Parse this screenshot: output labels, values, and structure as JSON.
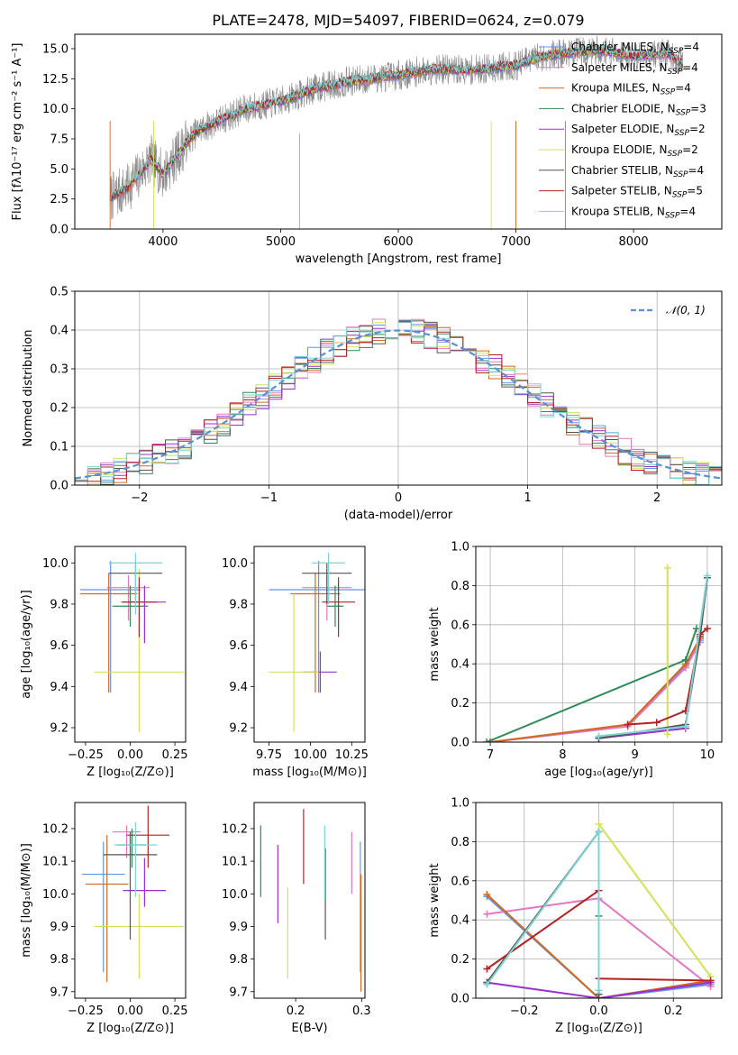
{
  "colors": {
    "chabrier_miles": "#6495ed",
    "salpeter_miles": "#e377c2",
    "kroupa_miles": "#d2691e",
    "chabrier_elodie": "#2e8b57",
    "salpeter_elodie": "#9932cc",
    "kroupa_elodie": "#d4e157",
    "chabrier_stelib": "#555555",
    "salpeter_stelib": "#b22222",
    "kroupa_stelib": "#7fd3d3",
    "data_gray": "#888888",
    "red_model": "#c0392b",
    "gauss": "#5b8fd6"
  },
  "chart_data": [
    {
      "id": "spectrum",
      "type": "line",
      "title": "PLATE=2478, MJD=54097, FIBERID=0624, z=0.079",
      "xlabel": "wavelength [Angstrom, rest frame]",
      "ylabel": "Flux [fλ10⁻¹⁷ erg cm⁻² s⁻¹ A⁻¹]",
      "xlim": [
        3250,
        8750
      ],
      "ylim": [
        0,
        16.2
      ],
      "xticks": [
        4000,
        5000,
        6000,
        7000,
        8000
      ],
      "xtick_labels": [
        "4000",
        "5000",
        "6000",
        "7000",
        "8000"
      ],
      "yticks": [
        0,
        2.5,
        5,
        7.5,
        10,
        12.5,
        15
      ],
      "ytick_labels": [
        "0.0",
        "2.5",
        "5.0",
        "7.5",
        "10.0",
        "12.5",
        "15.0"
      ],
      "continuum_x": [
        3550,
        3700,
        3900,
        4000,
        4200,
        4300,
        4500,
        4700,
        5000,
        5300,
        5600,
        6000,
        6300,
        6600,
        7000,
        7200,
        7400,
        7700,
        8000,
        8300,
        8400
      ],
      "continuum_y": [
        2.6,
        3.4,
        5.8,
        4.5,
        7.2,
        8.2,
        9.1,
        10.0,
        10.6,
        11.7,
        12.3,
        12.8,
        13.3,
        13.2,
        13.6,
        14.3,
        14.6,
        14.9,
        14.4,
        14.6,
        13.8
      ],
      "noise": 1.6,
      "model_span": [
        3550,
        8420
      ],
      "legend": [
        {
          "label": "Chabrier MILES, N",
          "sub": "SSP",
          "tail": "=4",
          "color": "#6495ed"
        },
        {
          "label": "Salpeter MILES, N",
          "sub": "SSP",
          "tail": "=4",
          "color": "#e377c2"
        },
        {
          "label": "Kroupa MILES, N",
          "sub": "SSP",
          "tail": "=4",
          "color": "#d2691e"
        },
        {
          "label": "Chabrier ELODIE, N",
          "sub": "SSP",
          "tail": "=3",
          "color": "#2e8b57"
        },
        {
          "label": "Salpeter ELODIE, N",
          "sub": "SSP",
          "tail": "=2",
          "color": "#9932cc"
        },
        {
          "label": "Kroupa ELODIE, N",
          "sub": "SSP",
          "tail": "=2",
          "color": "#d4e157"
        },
        {
          "label": "Chabrier STELIB, N",
          "sub": "SSP",
          "tail": "=4",
          "color": "#555555"
        },
        {
          "label": "Salpeter STELIB, N",
          "sub": "SSP",
          "tail": "=5",
          "color": "#b22222"
        },
        {
          "label": "Kroupa STELIB, N",
          "sub": "SSP",
          "tail": "=4",
          "color": "#7fd3d3"
        }
      ]
    },
    {
      "id": "residuals",
      "type": "line",
      "xlabel": "(data-model)/error",
      "ylabel": "Normed distribution",
      "xlim": [
        -2.5,
        2.5
      ],
      "ylim": [
        0,
        0.5
      ],
      "xticks": [
        -2,
        -1,
        0,
        1,
        2
      ],
      "xtick_labels": [
        "−2",
        "−1",
        "0",
        "1",
        "2"
      ],
      "yticks": [
        0,
        0.1,
        0.2,
        0.3,
        0.4,
        0.5
      ],
      "ytick_labels": [
        "0.0",
        "0.1",
        "0.2",
        "0.3",
        "0.4",
        "0.5"
      ],
      "bin_width": 0.1,
      "gaussian_label": "𝒩(0, 1)",
      "grid": true
    },
    {
      "id": "age_vs_Z",
      "type": "scatter",
      "xlabel": "Z [log₁₀(Z/Z⊙)]",
      "ylabel": "age  [log₁₀(age/yr)]",
      "xlim": [
        -0.31,
        0.31
      ],
      "ylim": [
        9.13,
        10.08
      ],
      "xticks": [
        -0.25,
        0,
        0.25
      ],
      "xtick_labels": [
        "−0.25",
        "0.00",
        "0.25"
      ],
      "yticks": [
        9.2,
        9.4,
        9.6,
        9.8,
        10.0
      ],
      "ytick_labels": [
        "9.2",
        "9.4",
        "9.6",
        "9.8",
        "10.0"
      ],
      "points": [
        {
          "x": -0.11,
          "y": 9.87,
          "xerr": 0.17,
          "yerr_lo": 0.5,
          "yerr_hi": 0.14,
          "color": "#6495ed"
        },
        {
          "x": -0.01,
          "y": 9.88,
          "xerr": 0.12,
          "yerr_lo": 0.16,
          "yerr_hi": 0.06,
          "color": "#e377c2"
        },
        {
          "x": -0.12,
          "y": 9.85,
          "xerr": 0.16,
          "yerr_lo": 0.48,
          "yerr_hi": 0.1,
          "color": "#d2691e"
        },
        {
          "x": 0.0,
          "y": 9.79,
          "xerr": 0.1,
          "yerr_lo": 0.1,
          "yerr_hi": 0.1,
          "color": "#2e8b57"
        },
        {
          "x": 0.08,
          "y": 9.81,
          "xerr": 0.12,
          "yerr_lo": 0.2,
          "yerr_hi": 0.08,
          "color": "#9932cc"
        },
        {
          "x": 0.05,
          "y": 9.47,
          "xerr": 0.25,
          "yerr_lo": 0.29,
          "yerr_hi": 0.5,
          "color": "#d4e157"
        },
        {
          "x": 0.03,
          "y": 9.95,
          "xerr": 0.15,
          "yerr_lo": 0.15,
          "yerr_hi": 0.05,
          "color": "#555555"
        },
        {
          "x": 0.05,
          "y": 9.81,
          "xerr": 0.1,
          "yerr_lo": 0.17,
          "yerr_hi": 0.12,
          "color": "#b22222"
        },
        {
          "x": 0.03,
          "y": 10.0,
          "xerr": 0.15,
          "yerr_lo": 0.25,
          "yerr_hi": 0.05,
          "color": "#7fd3d3"
        }
      ]
    },
    {
      "id": "age_vs_mass",
      "type": "scatter",
      "xlabel": "mass [log₁₀(M/M⊙)]",
      "ylabel": "",
      "xlim": [
        9.66,
        10.33
      ],
      "ylim": [
        9.13,
        10.08
      ],
      "xticks": [
        9.75,
        10.0,
        10.25
      ],
      "xtick_labels": [
        "9.75",
        "10.00",
        "10.25"
      ],
      "yticks": [
        9.2,
        9.4,
        9.6,
        9.8,
        10.0
      ],
      "ytick_labels": [
        "9.2",
        "9.4",
        "9.6",
        "9.8",
        "10.0"
      ],
      "points": [
        {
          "x": 10.05,
          "y": 9.87,
          "xerr": 0.3,
          "yerr_lo": 0.5,
          "yerr_hi": 0.14,
          "color": "#6495ed"
        },
        {
          "x": 10.1,
          "y": 9.88,
          "xerr": 0.15,
          "yerr_lo": 0.16,
          "yerr_hi": 0.06,
          "color": "#e377c2"
        },
        {
          "x": 10.03,
          "y": 9.85,
          "xerr": 0.15,
          "yerr_lo": 0.48,
          "yerr_hi": 0.1,
          "color": "#d2691e"
        },
        {
          "x": 10.15,
          "y": 9.79,
          "xerr": 0.05,
          "yerr_lo": 0.1,
          "yerr_hi": 0.1,
          "color": "#2e8b57"
        },
        {
          "x": 10.06,
          "y": 9.47,
          "xerr": 0.1,
          "yerr_lo": 0.1,
          "yerr_hi": 0.1,
          "color": "#9932cc"
        },
        {
          "x": 9.9,
          "y": 9.47,
          "xerr": 0.15,
          "yerr_lo": 0.29,
          "yerr_hi": 0.38,
          "color": "#d4e157"
        },
        {
          "x": 10.1,
          "y": 9.95,
          "xerr": 0.15,
          "yerr_lo": 0.15,
          "yerr_hi": 0.05,
          "color": "#555555"
        },
        {
          "x": 10.17,
          "y": 9.81,
          "xerr": 0.1,
          "yerr_lo": 0.17,
          "yerr_hi": 0.12,
          "color": "#b22222"
        },
        {
          "x": 10.11,
          "y": 10.0,
          "xerr": 0.1,
          "yerr_lo": 0.2,
          "yerr_hi": 0.05,
          "color": "#7fd3d3"
        }
      ]
    },
    {
      "id": "weight_vs_age",
      "type": "line",
      "xlabel": "age  [log₁₀(age/yr)]",
      "ylabel": "mass weight",
      "xlim": [
        6.8,
        10.2
      ],
      "ylim": [
        0,
        1.0
      ],
      "xticks": [
        7,
        8,
        9,
        10
      ],
      "xtick_labels": [
        "7",
        "8",
        "9",
        "10"
      ],
      "yticks": [
        0,
        0.2,
        0.4,
        0.6,
        0.8,
        1.0
      ],
      "ytick_labels": [
        "0.0",
        "0.2",
        "0.4",
        "0.6",
        "0.8",
        "1.0"
      ],
      "grid": true,
      "series": [
        {
          "color": "#6495ed",
          "x": [
            7.0,
            8.9,
            9.7,
            9.9
          ],
          "y": [
            0.0,
            0.08,
            0.39,
            0.52
          ]
        },
        {
          "color": "#e377c2",
          "x": [
            7.0,
            8.9,
            9.7,
            9.9
          ],
          "y": [
            0.0,
            0.08,
            0.38,
            0.51
          ]
        },
        {
          "color": "#d2691e",
          "x": [
            7.0,
            8.9,
            9.7,
            9.9
          ],
          "y": [
            0.0,
            0.09,
            0.4,
            0.53
          ]
        },
        {
          "color": "#2e8b57",
          "x": [
            6.95,
            9.7,
            9.85
          ],
          "y": [
            0.0,
            0.42,
            0.58
          ]
        },
        {
          "color": "#9932cc",
          "x": [
            8.5,
            9.7
          ],
          "y": [
            0.02,
            0.07
          ]
        },
        {
          "color": "#d4e157",
          "x": [
            9.45,
            9.45
          ],
          "y": [
            0.04,
            0.89
          ]
        },
        {
          "color": "#555555",
          "x": [
            8.5,
            9.7,
            9.9,
            10.0
          ],
          "y": [
            0.02,
            0.09,
            0.54,
            0.84
          ]
        },
        {
          "color": "#b22222",
          "x": [
            8.9,
            9.3,
            9.7,
            9.9,
            10.0
          ],
          "y": [
            0.09,
            0.1,
            0.16,
            0.55,
            0.58
          ]
        },
        {
          "color": "#7fd3d3",
          "x": [
            8.5,
            9.7,
            10.0
          ],
          "y": [
            0.03,
            0.08,
            0.85
          ]
        }
      ]
    },
    {
      "id": "mass_vs_Z",
      "type": "scatter",
      "xlabel": "Z [log₁₀(Z/Z⊙)]",
      "ylabel": "mass [log₁₀(M/M⊙)]",
      "xlim": [
        -0.31,
        0.31
      ],
      "ylim": [
        9.68,
        10.28
      ],
      "xticks": [
        -0.25,
        0,
        0.25
      ],
      "xtick_labels": [
        "−0.25",
        "0.00",
        "0.25"
      ],
      "yticks": [
        9.7,
        9.8,
        9.9,
        10.0,
        10.1,
        10.2
      ],
      "ytick_labels": [
        "9.7",
        "9.8",
        "9.9",
        "10.0",
        "10.1",
        "10.2"
      ],
      "points": [
        {
          "x": -0.15,
          "y": 10.06,
          "xerr": 0.12,
          "yerr_lo": 0.3,
          "yerr_hi": 0.1,
          "color": "#6495ed"
        },
        {
          "x": -0.02,
          "y": 10.19,
          "xerr": 0.08,
          "yerr_lo": 0.08,
          "yerr_hi": 0.02,
          "color": "#e377c2"
        },
        {
          "x": -0.13,
          "y": 10.03,
          "xerr": 0.12,
          "yerr_lo": 0.3,
          "yerr_hi": 0.15,
          "color": "#d2691e"
        },
        {
          "x": 0.01,
          "y": 10.15,
          "xerr": 0.08,
          "yerr_lo": 0.07,
          "yerr_hi": 0.05,
          "color": "#2e8b57"
        },
        {
          "x": 0.08,
          "y": 10.01,
          "xerr": 0.12,
          "yerr_lo": 0.05,
          "yerr_hi": 0.1,
          "color": "#9932cc"
        },
        {
          "x": 0.05,
          "y": 9.9,
          "xerr": 0.25,
          "yerr_lo": 0.16,
          "yerr_hi": 0.1,
          "color": "#d4e157"
        },
        {
          "x": 0.0,
          "y": 10.12,
          "xerr": 0.15,
          "yerr_lo": 0.26,
          "yerr_hi": 0.07,
          "color": "#555555"
        },
        {
          "x": 0.1,
          "y": 10.18,
          "xerr": 0.12,
          "yerr_lo": 0.1,
          "yerr_hi": 0.09,
          "color": "#b22222"
        },
        {
          "x": 0.03,
          "y": 10.15,
          "xerr": 0.12,
          "yerr_lo": 0.16,
          "yerr_hi": 0.07,
          "color": "#7fd3d3"
        }
      ]
    },
    {
      "id": "mass_vs_ebv",
      "type": "scatter",
      "xlabel": "E(B-V)",
      "ylabel": "",
      "xlim": [
        0.137,
        0.305
      ],
      "ylim": [
        9.68,
        10.28
      ],
      "xticks": [
        0.2,
        0.3
      ],
      "xtick_labels": [
        "0.2",
        "0.3"
      ],
      "yticks": [
        9.7,
        9.8,
        9.9,
        10.0,
        10.1,
        10.2
      ],
      "ytick_labels": [
        "9.7",
        "9.8",
        "9.9",
        "10.0",
        "10.1",
        "10.2"
      ],
      "points": [
        {
          "x": 0.298,
          "y": 10.06,
          "yerr_lo": 0.3,
          "yerr_hi": 0.1,
          "color": "#6495ed"
        },
        {
          "x": 0.285,
          "y": 10.1,
          "yerr_lo": 0.1,
          "yerr_hi": 0.09,
          "color": "#e377c2"
        },
        {
          "x": 0.299,
          "y": 9.88,
          "yerr_lo": 0.18,
          "yerr_hi": 0.18,
          "color": "#d2691e"
        },
        {
          "x": 0.147,
          "y": 10.1,
          "yerr_lo": 0.11,
          "yerr_hi": 0.11,
          "color": "#2e8b57"
        },
        {
          "x": 0.173,
          "y": 10.03,
          "yerr_lo": 0.12,
          "yerr_hi": 0.12,
          "color": "#9932cc"
        },
        {
          "x": 0.188,
          "y": 9.88,
          "yerr_lo": 0.14,
          "yerr_hi": 0.14,
          "color": "#d4e157"
        },
        {
          "x": 0.245,
          "y": 10.0,
          "yerr_lo": 0.14,
          "yerr_hi": 0.14,
          "color": "#555555"
        },
        {
          "x": 0.212,
          "y": 10.14,
          "yerr_lo": 0.11,
          "yerr_hi": 0.12,
          "color": "#b22222"
        },
        {
          "x": 0.244,
          "y": 10.1,
          "yerr_lo": 0.12,
          "yerr_hi": 0.11,
          "color": "#7fd3d3"
        }
      ]
    },
    {
      "id": "weight_vs_Z",
      "type": "line",
      "xlabel": "Z [log₁₀(Z/Z⊙)]",
      "ylabel": "mass weight",
      "xlim": [
        -0.33,
        0.33
      ],
      "ylim": [
        0,
        1.0
      ],
      "xticks": [
        -0.2,
        0,
        0.2
      ],
      "xtick_labels": [
        "−0.2",
        "0.0",
        "0.2"
      ],
      "yticks": [
        0,
        0.2,
        0.4,
        0.6,
        0.8,
        1.0
      ],
      "ytick_labels": [
        "0.0",
        "0.2",
        "0.4",
        "0.6",
        "0.8",
        "1.0"
      ],
      "grid": true,
      "series": [
        {
          "color": "#6495ed",
          "x": [
            -0.3,
            0.0,
            0.3
          ],
          "y": [
            0.52,
            0.0,
            0.07
          ]
        },
        {
          "color": "#e377c2",
          "x": [
            -0.3,
            0.0,
            0.3
          ],
          "y": [
            0.43,
            0.51,
            0.06
          ]
        },
        {
          "color": "#d2691e",
          "x": [
            -0.3,
            0.0,
            0.3
          ],
          "y": [
            0.53,
            0.0,
            0.09
          ]
        },
        {
          "color": "#2e8b57",
          "x": [
            -0.3,
            0.0,
            0.0
          ],
          "y": [
            0.08,
            0.85,
            0.42
          ]
        },
        {
          "color": "#9932cc",
          "x": [
            -0.3,
            0.0,
            0.3
          ],
          "y": [
            0.08,
            0.0,
            0.08
          ]
        },
        {
          "color": "#d4e157",
          "x": [
            0.0,
            0.3
          ],
          "y": [
            0.89,
            0.11
          ]
        },
        {
          "color": "#555555",
          "x": [
            -0.3,
            0.0,
            0.0
          ],
          "y": [
            0.08,
            0.85,
            0.02
          ]
        },
        {
          "color": "#b22222",
          "x": [
            -0.3,
            0.0,
            0.0,
            0.3
          ],
          "y": [
            0.15,
            0.55,
            0.1,
            0.09
          ]
        },
        {
          "color": "#7fd3d3",
          "x": [
            -0.3,
            0.0,
            0.0
          ],
          "y": [
            0.07,
            0.85,
            0.04
          ]
        }
      ]
    }
  ]
}
